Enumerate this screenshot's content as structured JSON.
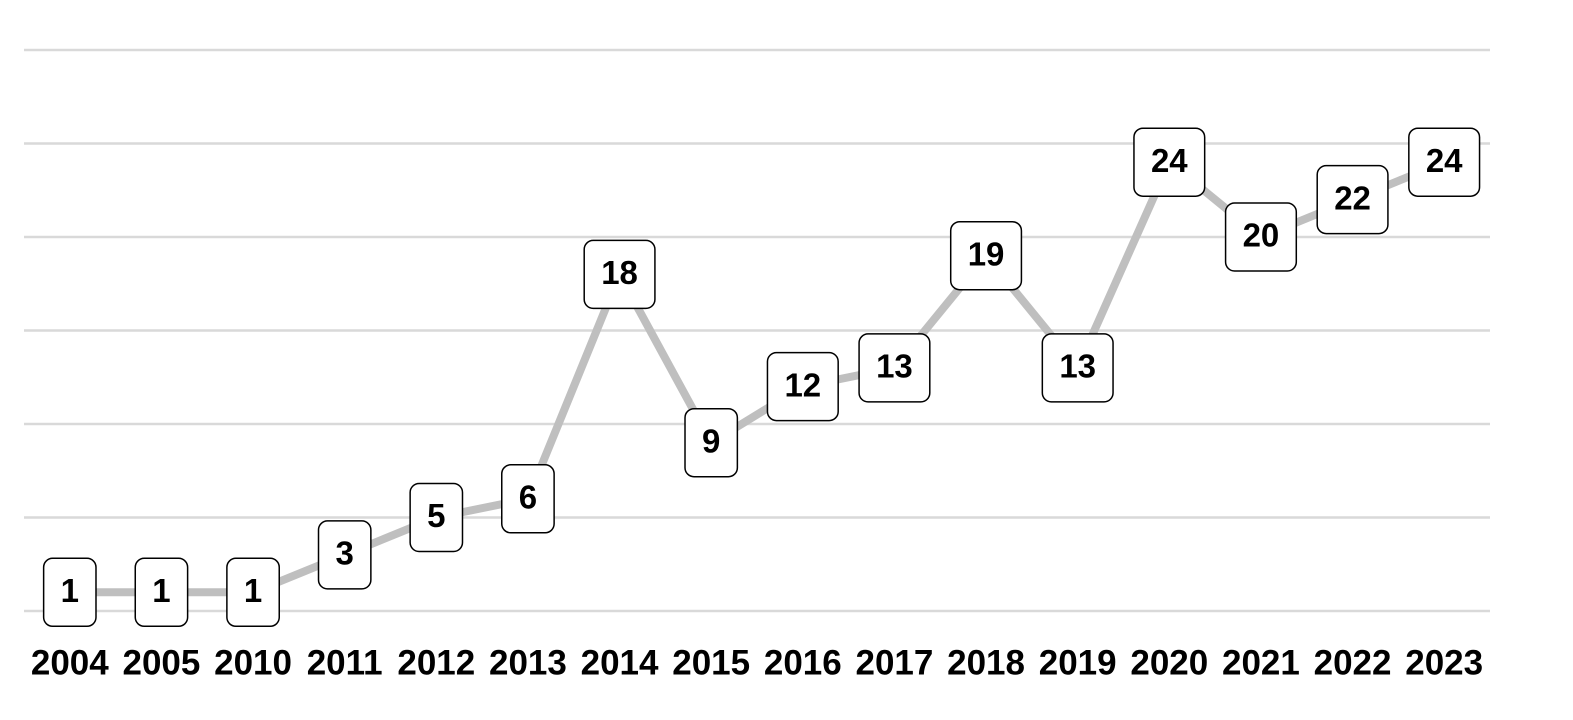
{
  "chart_data": {
    "type": "line",
    "categories": [
      "2004",
      "2005",
      "2010",
      "2011",
      "2012",
      "2013",
      "2014",
      "2015",
      "2016",
      "2017",
      "2018",
      "2019",
      "2020",
      "2021",
      "2022",
      "2023"
    ],
    "values": [
      1,
      1,
      1,
      3,
      5,
      6,
      18,
      9,
      12,
      13,
      19,
      13,
      24,
      20,
      22,
      24
    ],
    "color": "#bfbfbf",
    "ylim": [
      0,
      30
    ],
    "yticks": [
      0,
      5,
      10,
      15,
      20,
      25,
      30
    ],
    "grid": true
  }
}
